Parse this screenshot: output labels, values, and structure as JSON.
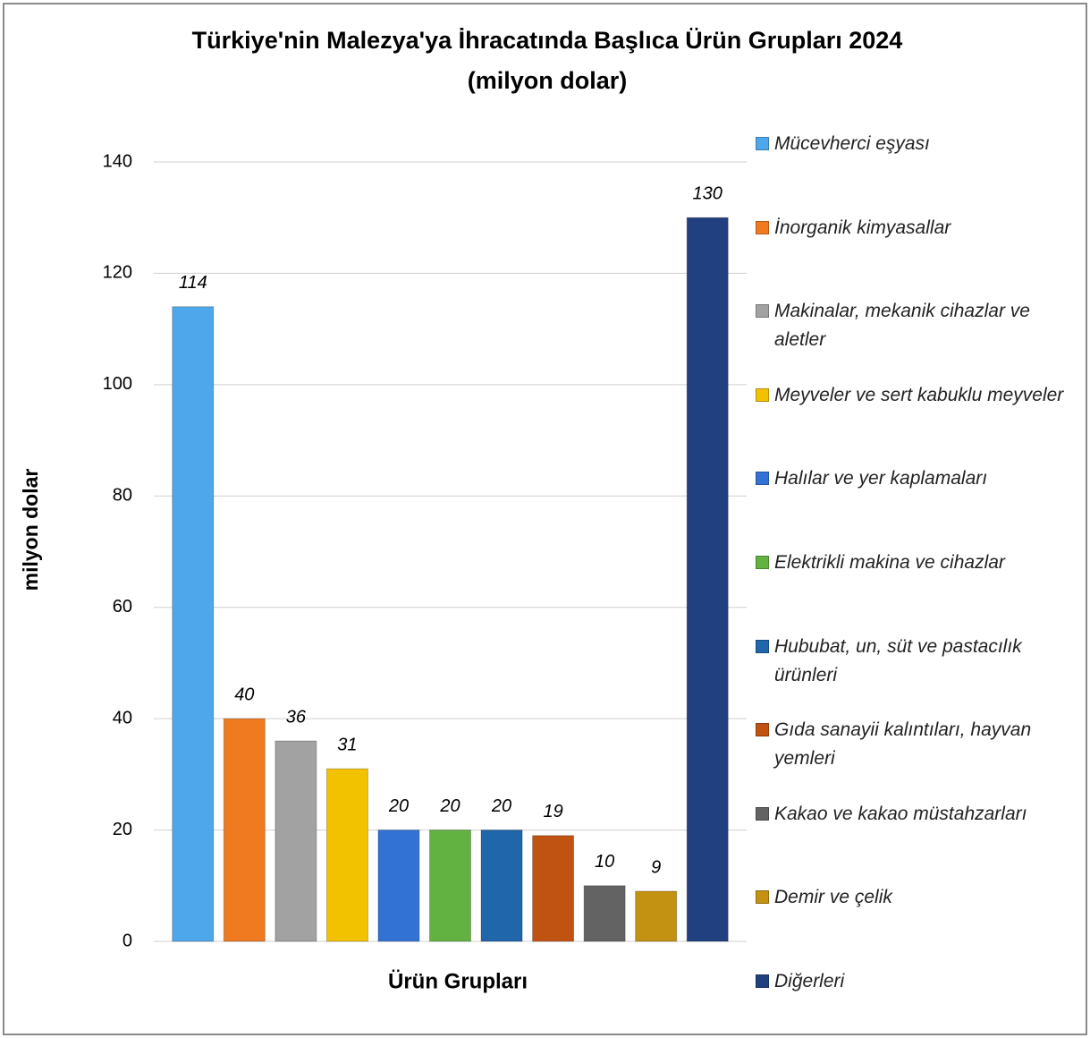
{
  "chart_data": {
    "type": "bar",
    "title": [
      "Türkiye'nin Malezya'ya İhracatında Başlıca Ürün Grupları 2024",
      "(milyon dolar)"
    ],
    "x_label": "Ürün Grupları",
    "y_label": "milyon dolar",
    "ylim": [
      0,
      140
    ],
    "yticks": [
      0,
      20,
      40,
      60,
      80,
      100,
      120,
      140
    ],
    "grid": true,
    "legend": "right",
    "series": [
      {
        "name": "Mücevherci eşyası",
        "color": "#4ea7ea",
        "values": [
          114
        ]
      },
      {
        "name": "İnorganik kimyasallar",
        "color": "#f07a20",
        "values": [
          40
        ]
      },
      {
        "name": "Makinalar, mekanik cihazlar ve aletler",
        "color": "#a2a2a2",
        "values": [
          36
        ]
      },
      {
        "name": "Meyveler ve sert kabuklu meyveler",
        "color": "#f2c200",
        "values": [
          31
        ]
      },
      {
        "name": "Halılar ve yer kaplamaları",
        "color": "#3272d4",
        "values": [
          20
        ]
      },
      {
        "name": "Elektrikli makina ve cihazlar",
        "color": "#62b242",
        "values": [
          20
        ]
      },
      {
        "name": "Hububat, un, süt ve pastacılık ürünleri",
        "color": "#1f66aa",
        "values": [
          20
        ]
      },
      {
        "name": "Gıda sanayii kalıntıları, hayvan yemleri",
        "color": "#c05212",
        "values": [
          19
        ]
      },
      {
        "name": "Kakao ve kakao müstahzarları",
        "color": "#636363",
        "values": [
          10
        ]
      },
      {
        "name": "Demir ve çelik",
        "color": "#c49212",
        "values": [
          9
        ]
      },
      {
        "name": "Diğerleri",
        "color": "#20407f",
        "values": [
          130
        ]
      }
    ]
  }
}
